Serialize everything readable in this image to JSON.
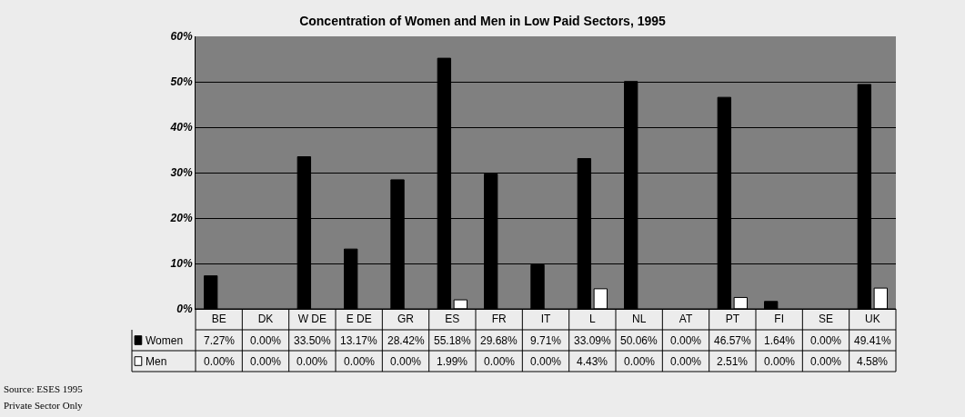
{
  "chart_data": {
    "type": "bar",
    "title": "Concentration of Women and Men in Low Paid Sectors, 1995",
    "categories": [
      "BE",
      "DK",
      "W DE",
      "E DE",
      "GR",
      "ES",
      "FR",
      "IT",
      "L",
      "NL",
      "AT",
      "PT",
      "FI",
      "SE",
      "UK"
    ],
    "series": [
      {
        "name": "Women",
        "color": "#000000",
        "values": [
          7.27,
          0.0,
          33.5,
          13.17,
          28.42,
          55.18,
          29.68,
          9.71,
          33.09,
          50.06,
          0.0,
          46.57,
          1.64,
          0.0,
          49.41
        ],
        "value_labels": [
          "7.27%",
          "0.00%",
          "33.50%",
          "13.17%",
          "28.42%",
          "55.18%",
          "29.68%",
          "9.71%",
          "33.09%",
          "50.06%",
          "0.00%",
          "46.57%",
          "1.64%",
          "0.00%",
          "49.41%"
        ]
      },
      {
        "name": "Men",
        "color": "#ffffff",
        "values": [
          0.0,
          0.0,
          0.0,
          0.0,
          0.0,
          1.99,
          0.0,
          0.0,
          4.43,
          0.0,
          0.0,
          2.51,
          0.0,
          0.0,
          4.58
        ],
        "value_labels": [
          "0.00%",
          "0.00%",
          "0.00%",
          "0.00%",
          "0.00%",
          "1.99%",
          "0.00%",
          "0.00%",
          "4.43%",
          "0.00%",
          "0.00%",
          "2.51%",
          "0.00%",
          "0.00%",
          "4.58%"
        ]
      }
    ],
    "ylim": [
      0,
      60
    ],
    "yticks": [
      {
        "value": 0,
        "label": "0%"
      },
      {
        "value": 10,
        "label": "10%"
      },
      {
        "value": 20,
        "label": "20%"
      },
      {
        "value": 30,
        "label": "30%"
      },
      {
        "value": 40,
        "label": "40%"
      },
      {
        "value": 50,
        "label": "50%"
      },
      {
        "value": 60,
        "label": "60%"
      }
    ],
    "grid": "y",
    "legend": "bottom left",
    "annotations": [
      "Source: ESES 1995",
      "Private Sector Only"
    ]
  }
}
